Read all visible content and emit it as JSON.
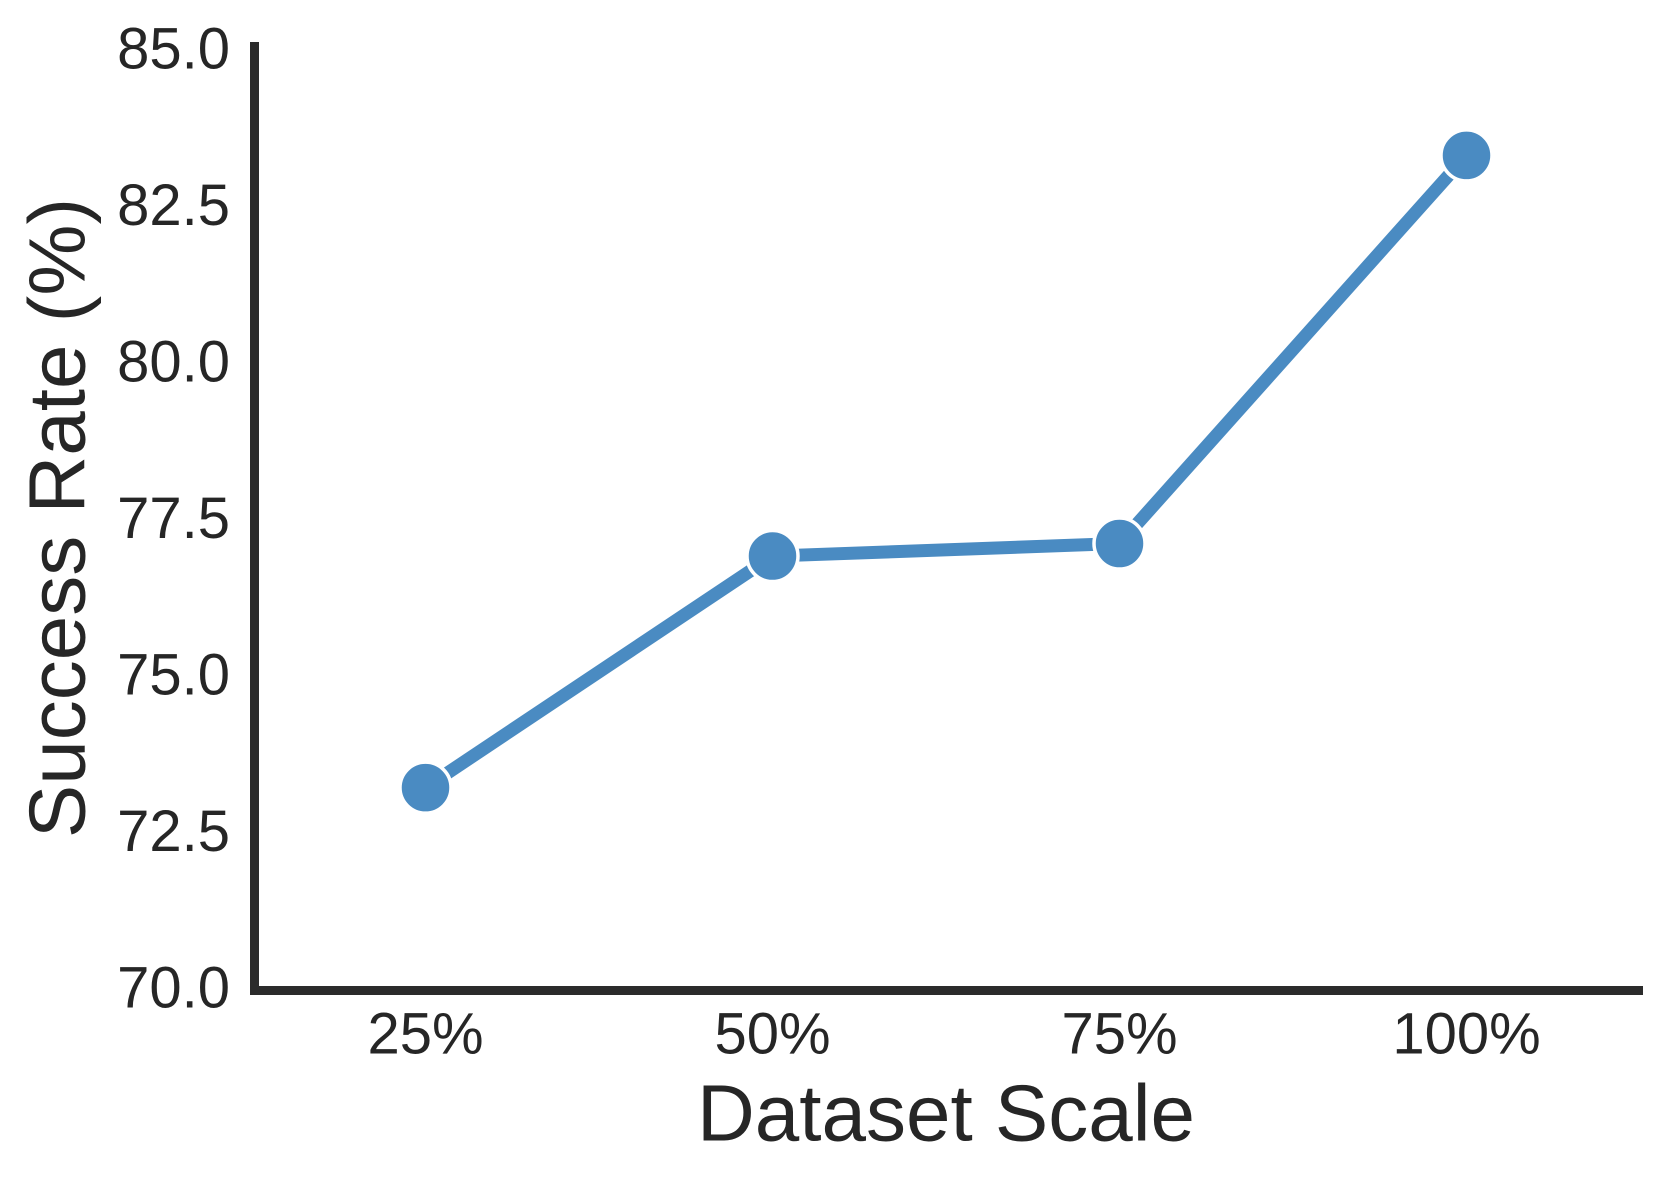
{
  "chart_data": {
    "type": "line",
    "title": "",
    "xlabel": "Dataset Scale",
    "ylabel": "Success Rate (%)",
    "categories": [
      "25%",
      "50%",
      "75%",
      "100%"
    ],
    "series": [
      {
        "name": "Success Rate",
        "values": [
          73.2,
          76.9,
          77.1,
          83.3
        ]
      }
    ],
    "ylim": [
      70.0,
      85.0
    ],
    "yticks": [
      70.0,
      72.5,
      75.0,
      77.5,
      80.0,
      82.5,
      85.0
    ],
    "ytick_labels": [
      "70.0",
      "72.5",
      "75.0",
      "77.5",
      "80.0",
      "82.5",
      "85.0"
    ],
    "grid": false,
    "legend": "none",
    "spines": [
      "left",
      "bottom"
    ],
    "marker": "circle",
    "colors": {
      "line": "#4a8bc2",
      "marker_fill": "#4a8bc2",
      "marker_edge": "#ffffff",
      "spine": "#2b2b2b",
      "text": "#262626",
      "background": "#ffffff"
    }
  }
}
